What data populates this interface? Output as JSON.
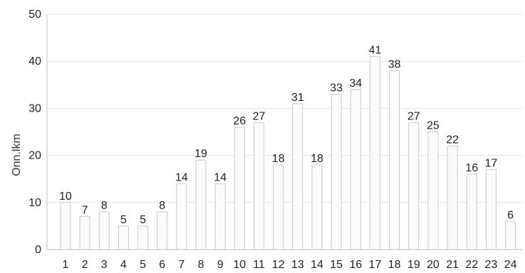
{
  "chart_data": {
    "type": "bar",
    "title": "",
    "xlabel": "",
    "ylabel": "Onn.lkm",
    "ylim": [
      0,
      50
    ],
    "yticks": [
      0,
      10,
      20,
      30,
      40,
      50
    ],
    "grid": true,
    "categories": [
      "1",
      "2",
      "3",
      "4",
      "5",
      "6",
      "7",
      "8",
      "9",
      "10",
      "11",
      "12",
      "13",
      "14",
      "15",
      "16",
      "17",
      "18",
      "19",
      "20",
      "21",
      "22",
      "23",
      "24"
    ],
    "values": [
      10,
      7,
      8,
      5,
      5,
      8,
      14,
      19,
      14,
      26,
      27,
      18,
      31,
      18,
      33,
      34,
      41,
      38,
      27,
      25,
      22,
      16,
      17,
      6
    ],
    "colors": {
      "bar_fill": "#fbfbfb",
      "bar_stroke": "#c9c9c9",
      "grid": "#e3e3e3",
      "axis": "#bdbdbd",
      "text": "#222222"
    }
  }
}
